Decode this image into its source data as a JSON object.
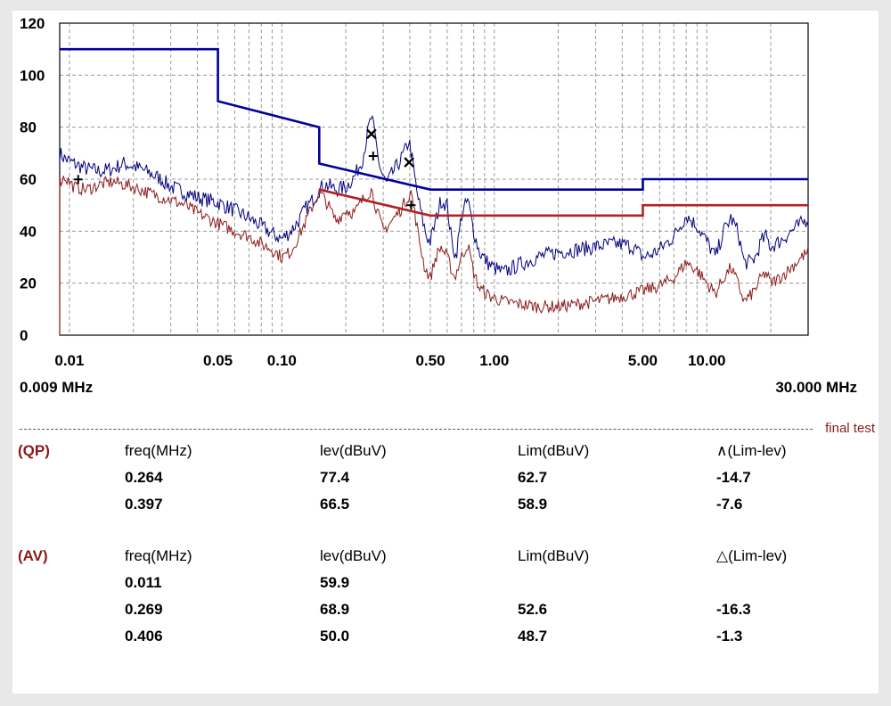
{
  "chart_data": {
    "type": "line",
    "title": "",
    "xlabel": "",
    "ylabel": "",
    "x_scale": "log",
    "xlim": [
      0.009,
      30.0
    ],
    "ylim": [
      0,
      120
    ],
    "grid": true,
    "y_ticks": [
      "0",
      "20",
      "40",
      "60",
      "80",
      "100",
      "120"
    ],
    "x_ticks": [
      {
        "value": 0.01,
        "label": "0.01"
      },
      {
        "value": 0.05,
        "label": "0.05"
      },
      {
        "value": 0.1,
        "label": "0.10"
      },
      {
        "value": 0.5,
        "label": "0.50"
      },
      {
        "value": 1.0,
        "label": "1.00"
      },
      {
        "value": 5.0,
        "label": "5.00"
      },
      {
        "value": 10.0,
        "label": "10.00"
      }
    ],
    "x_range_labels": {
      "start": "0.009 MHz",
      "end": "30.000 MHz"
    },
    "series": [
      {
        "color": "#000080",
        "points": [
          [
            0.009,
            70
          ],
          [
            0.0095,
            68
          ],
          [
            0.0105,
            66
          ],
          [
            0.012,
            64
          ],
          [
            0.014,
            63
          ],
          [
            0.016,
            64
          ],
          [
            0.018,
            66
          ],
          [
            0.02,
            65
          ],
          [
            0.023,
            63
          ],
          [
            0.027,
            60
          ],
          [
            0.03,
            57
          ],
          [
            0.035,
            55
          ],
          [
            0.04,
            53
          ],
          [
            0.05,
            51
          ],
          [
            0.06,
            48
          ],
          [
            0.07,
            45
          ],
          [
            0.08,
            42
          ],
          [
            0.09,
            39
          ],
          [
            0.1,
            37
          ],
          [
            0.11,
            40
          ],
          [
            0.12,
            44
          ],
          [
            0.13,
            49
          ],
          [
            0.14,
            52
          ],
          [
            0.15,
            56
          ],
          [
            0.16,
            58
          ],
          [
            0.18,
            56
          ],
          [
            0.2,
            57
          ],
          [
            0.22,
            61
          ],
          [
            0.24,
            68
          ],
          [
            0.255,
            79
          ],
          [
            0.264,
            84
          ],
          [
            0.275,
            76
          ],
          [
            0.29,
            64
          ],
          [
            0.31,
            58
          ],
          [
            0.33,
            62
          ],
          [
            0.36,
            67
          ],
          [
            0.385,
            72
          ],
          [
            0.397,
            75
          ],
          [
            0.41,
            68
          ],
          [
            0.43,
            56
          ],
          [
            0.46,
            44
          ],
          [
            0.48,
            38
          ],
          [
            0.5,
            36
          ],
          [
            0.53,
            44
          ],
          [
            0.56,
            52
          ],
          [
            0.6,
            50
          ],
          [
            0.63,
            36
          ],
          [
            0.66,
            30
          ],
          [
            0.7,
            46
          ],
          [
            0.75,
            52
          ],
          [
            0.8,
            40
          ],
          [
            0.85,
            32
          ],
          [
            0.95,
            27
          ],
          [
            1.1,
            24
          ],
          [
            1.3,
            27
          ],
          [
            1.6,
            30
          ],
          [
            2.0,
            32
          ],
          [
            2.5,
            33
          ],
          [
            3.0,
            34
          ],
          [
            3.5,
            35
          ],
          [
            4.0,
            35
          ],
          [
            4.5,
            34
          ],
          [
            5.0,
            30
          ],
          [
            5.5,
            31
          ],
          [
            6.0,
            33
          ],
          [
            7.0,
            38
          ],
          [
            8.0,
            46
          ],
          [
            9.0,
            42
          ],
          [
            10.0,
            36
          ],
          [
            11.0,
            30
          ],
          [
            12.0,
            40
          ],
          [
            13.0,
            45
          ],
          [
            14.0,
            40
          ],
          [
            15.0,
            28
          ],
          [
            16.0,
            28
          ],
          [
            17.0,
            30
          ],
          [
            18.0,
            36
          ],
          [
            19.0,
            38
          ],
          [
            20.0,
            34
          ],
          [
            22.0,
            36
          ],
          [
            25.0,
            40
          ],
          [
            28.0,
            43
          ],
          [
            30.0,
            45
          ]
        ]
      },
      {
        "color": "#8b1a1a",
        "points": [
          [
            0.009,
            0
          ],
          [
            0.00901,
            59
          ],
          [
            0.0095,
            61
          ],
          [
            0.0105,
            57
          ],
          [
            0.012,
            56
          ],
          [
            0.014,
            58
          ],
          [
            0.016,
            59
          ],
          [
            0.018,
            58
          ],
          [
            0.02,
            57
          ],
          [
            0.025,
            54
          ],
          [
            0.03,
            52
          ],
          [
            0.035,
            50
          ],
          [
            0.04,
            47
          ],
          [
            0.05,
            43
          ],
          [
            0.06,
            40
          ],
          [
            0.07,
            38
          ],
          [
            0.08,
            35
          ],
          [
            0.09,
            33
          ],
          [
            0.1,
            30
          ],
          [
            0.11,
            32
          ],
          [
            0.12,
            38
          ],
          [
            0.13,
            44
          ],
          [
            0.14,
            50
          ],
          [
            0.15,
            55
          ],
          [
            0.16,
            52
          ],
          [
            0.18,
            44
          ],
          [
            0.2,
            48
          ],
          [
            0.22,
            47
          ],
          [
            0.24,
            52
          ],
          [
            0.264,
            56
          ],
          [
            0.28,
            48
          ],
          [
            0.3,
            40
          ],
          [
            0.33,
            44
          ],
          [
            0.36,
            48
          ],
          [
            0.385,
            52
          ],
          [
            0.406,
            55
          ],
          [
            0.42,
            48
          ],
          [
            0.44,
            38
          ],
          [
            0.47,
            26
          ],
          [
            0.5,
            22
          ],
          [
            0.53,
            30
          ],
          [
            0.56,
            34
          ],
          [
            0.6,
            30
          ],
          [
            0.65,
            22
          ],
          [
            0.7,
            30
          ],
          [
            0.75,
            35
          ],
          [
            0.8,
            24
          ],
          [
            0.85,
            18
          ],
          [
            0.95,
            15
          ],
          [
            1.1,
            13
          ],
          [
            1.3,
            12
          ],
          [
            1.6,
            11
          ],
          [
            2.0,
            11
          ],
          [
            2.5,
            12
          ],
          [
            3.0,
            13
          ],
          [
            3.5,
            14
          ],
          [
            4.0,
            15
          ],
          [
            4.5,
            16
          ],
          [
            5.0,
            17
          ],
          [
            5.5,
            18
          ],
          [
            6.0,
            19
          ],
          [
            7.0,
            22
          ],
          [
            8.0,
            28
          ],
          [
            9.0,
            25
          ],
          [
            10.0,
            20
          ],
          [
            11.0,
            16
          ],
          [
            12.0,
            22
          ],
          [
            13.0,
            26
          ],
          [
            14.0,
            20
          ],
          [
            15.0,
            13
          ],
          [
            16.0,
            15
          ],
          [
            17.0,
            18
          ],
          [
            18.0,
            22
          ],
          [
            19.0,
            24
          ],
          [
            20.0,
            20
          ],
          [
            22.0,
            22
          ],
          [
            25.0,
            26
          ],
          [
            28.0,
            30
          ],
          [
            30.0,
            32
          ]
        ]
      },
      {
        "color": "#000099",
        "points": [
          [
            0.009,
            110
          ],
          [
            0.05,
            110
          ],
          [
            0.05,
            90
          ],
          [
            0.15,
            80
          ],
          [
            0.15,
            66
          ],
          [
            0.5,
            56
          ],
          [
            5.0,
            56
          ],
          [
            5.0,
            60
          ],
          [
            30.0,
            60
          ]
        ]
      },
      {
        "color": "#b22222",
        "points": [
          [
            0.15,
            56
          ],
          [
            0.5,
            46
          ],
          [
            5.0,
            46
          ],
          [
            5.0,
            50
          ],
          [
            30.0,
            50
          ]
        ]
      }
    ],
    "markers": [
      {
        "type": "x",
        "x": 0.264,
        "y": 77.4
      },
      {
        "type": "x",
        "x": 0.397,
        "y": 66.5
      },
      {
        "type": "plus",
        "x": 0.011,
        "y": 59.9
      },
      {
        "type": "plus",
        "x": 0.269,
        "y": 68.9
      },
      {
        "type": "plus",
        "x": 0.406,
        "y": 50.0
      }
    ],
    "annotation": "final test"
  },
  "qp_table": {
    "label": "(QP)",
    "headers": [
      "freq(MHz)",
      "lev(dBuV)",
      "Lim(dBuV)",
      "∧(Lim-lev)"
    ],
    "rows": [
      [
        "0.264",
        "77.4",
        "62.7",
        "-14.7"
      ],
      [
        "0.397",
        "66.5",
        "58.9",
        "-7.6"
      ]
    ]
  },
  "av_table": {
    "label": "(AV)",
    "headers": [
      "freq(MHz)",
      "lev(dBuV)",
      "Lim(dBuV)",
      "△(Lim-lev)"
    ],
    "rows": [
      [
        "0.011",
        "59.9",
        "",
        ""
      ],
      [
        "0.269",
        "68.9",
        "52.6",
        "-16.3"
      ],
      [
        "0.406",
        "50.0",
        "48.7",
        "-1.3"
      ]
    ]
  }
}
